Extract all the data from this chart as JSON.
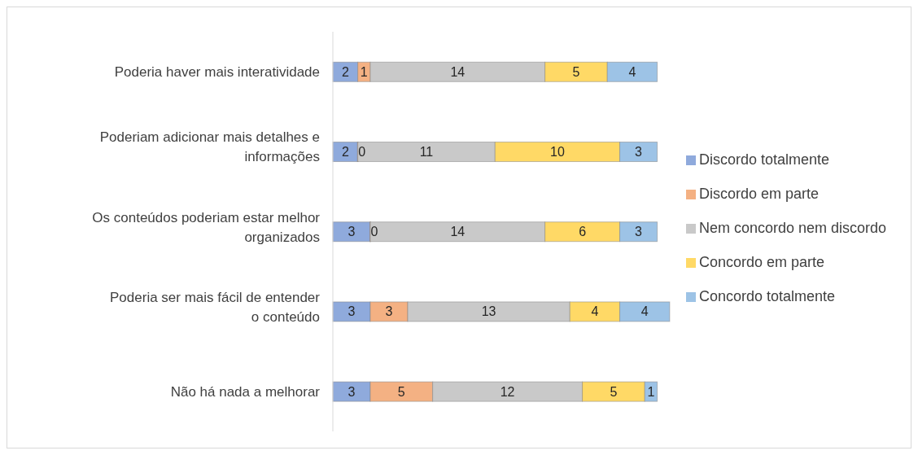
{
  "chart_data": {
    "type": "bar",
    "orientation": "horizontal",
    "stacked": true,
    "data_labels": true,
    "legend": "right",
    "grid": false,
    "categories": [
      "Poderia haver mais interatividade",
      "Poderiam adicionar mais detalhes e informações",
      "Os conteúdos poderiam estar melhor organizados",
      "Poderia ser mais fácil de entender o conteúdo",
      "Não há nada a melhorar"
    ],
    "series": [
      {
        "name": "Discordo totalmente",
        "color": "#8faadc",
        "values": [
          2,
          2,
          3,
          3,
          3
        ]
      },
      {
        "name": "Discordo em parte",
        "color": "#f4b183",
        "values": [
          1,
          0,
          0,
          3,
          5
        ]
      },
      {
        "name": "Nem concordo nem discordo",
        "color": "#c9c9c9",
        "values": [
          14,
          11,
          14,
          13,
          12
        ]
      },
      {
        "name": "Concordo em parte",
        "color": "#ffd966",
        "values": [
          5,
          10,
          6,
          4,
          5
        ]
      },
      {
        "name": "Concordo totalmente",
        "color": "#9dc3e6",
        "values": [
          4,
          3,
          3,
          4,
          1
        ]
      }
    ]
  }
}
